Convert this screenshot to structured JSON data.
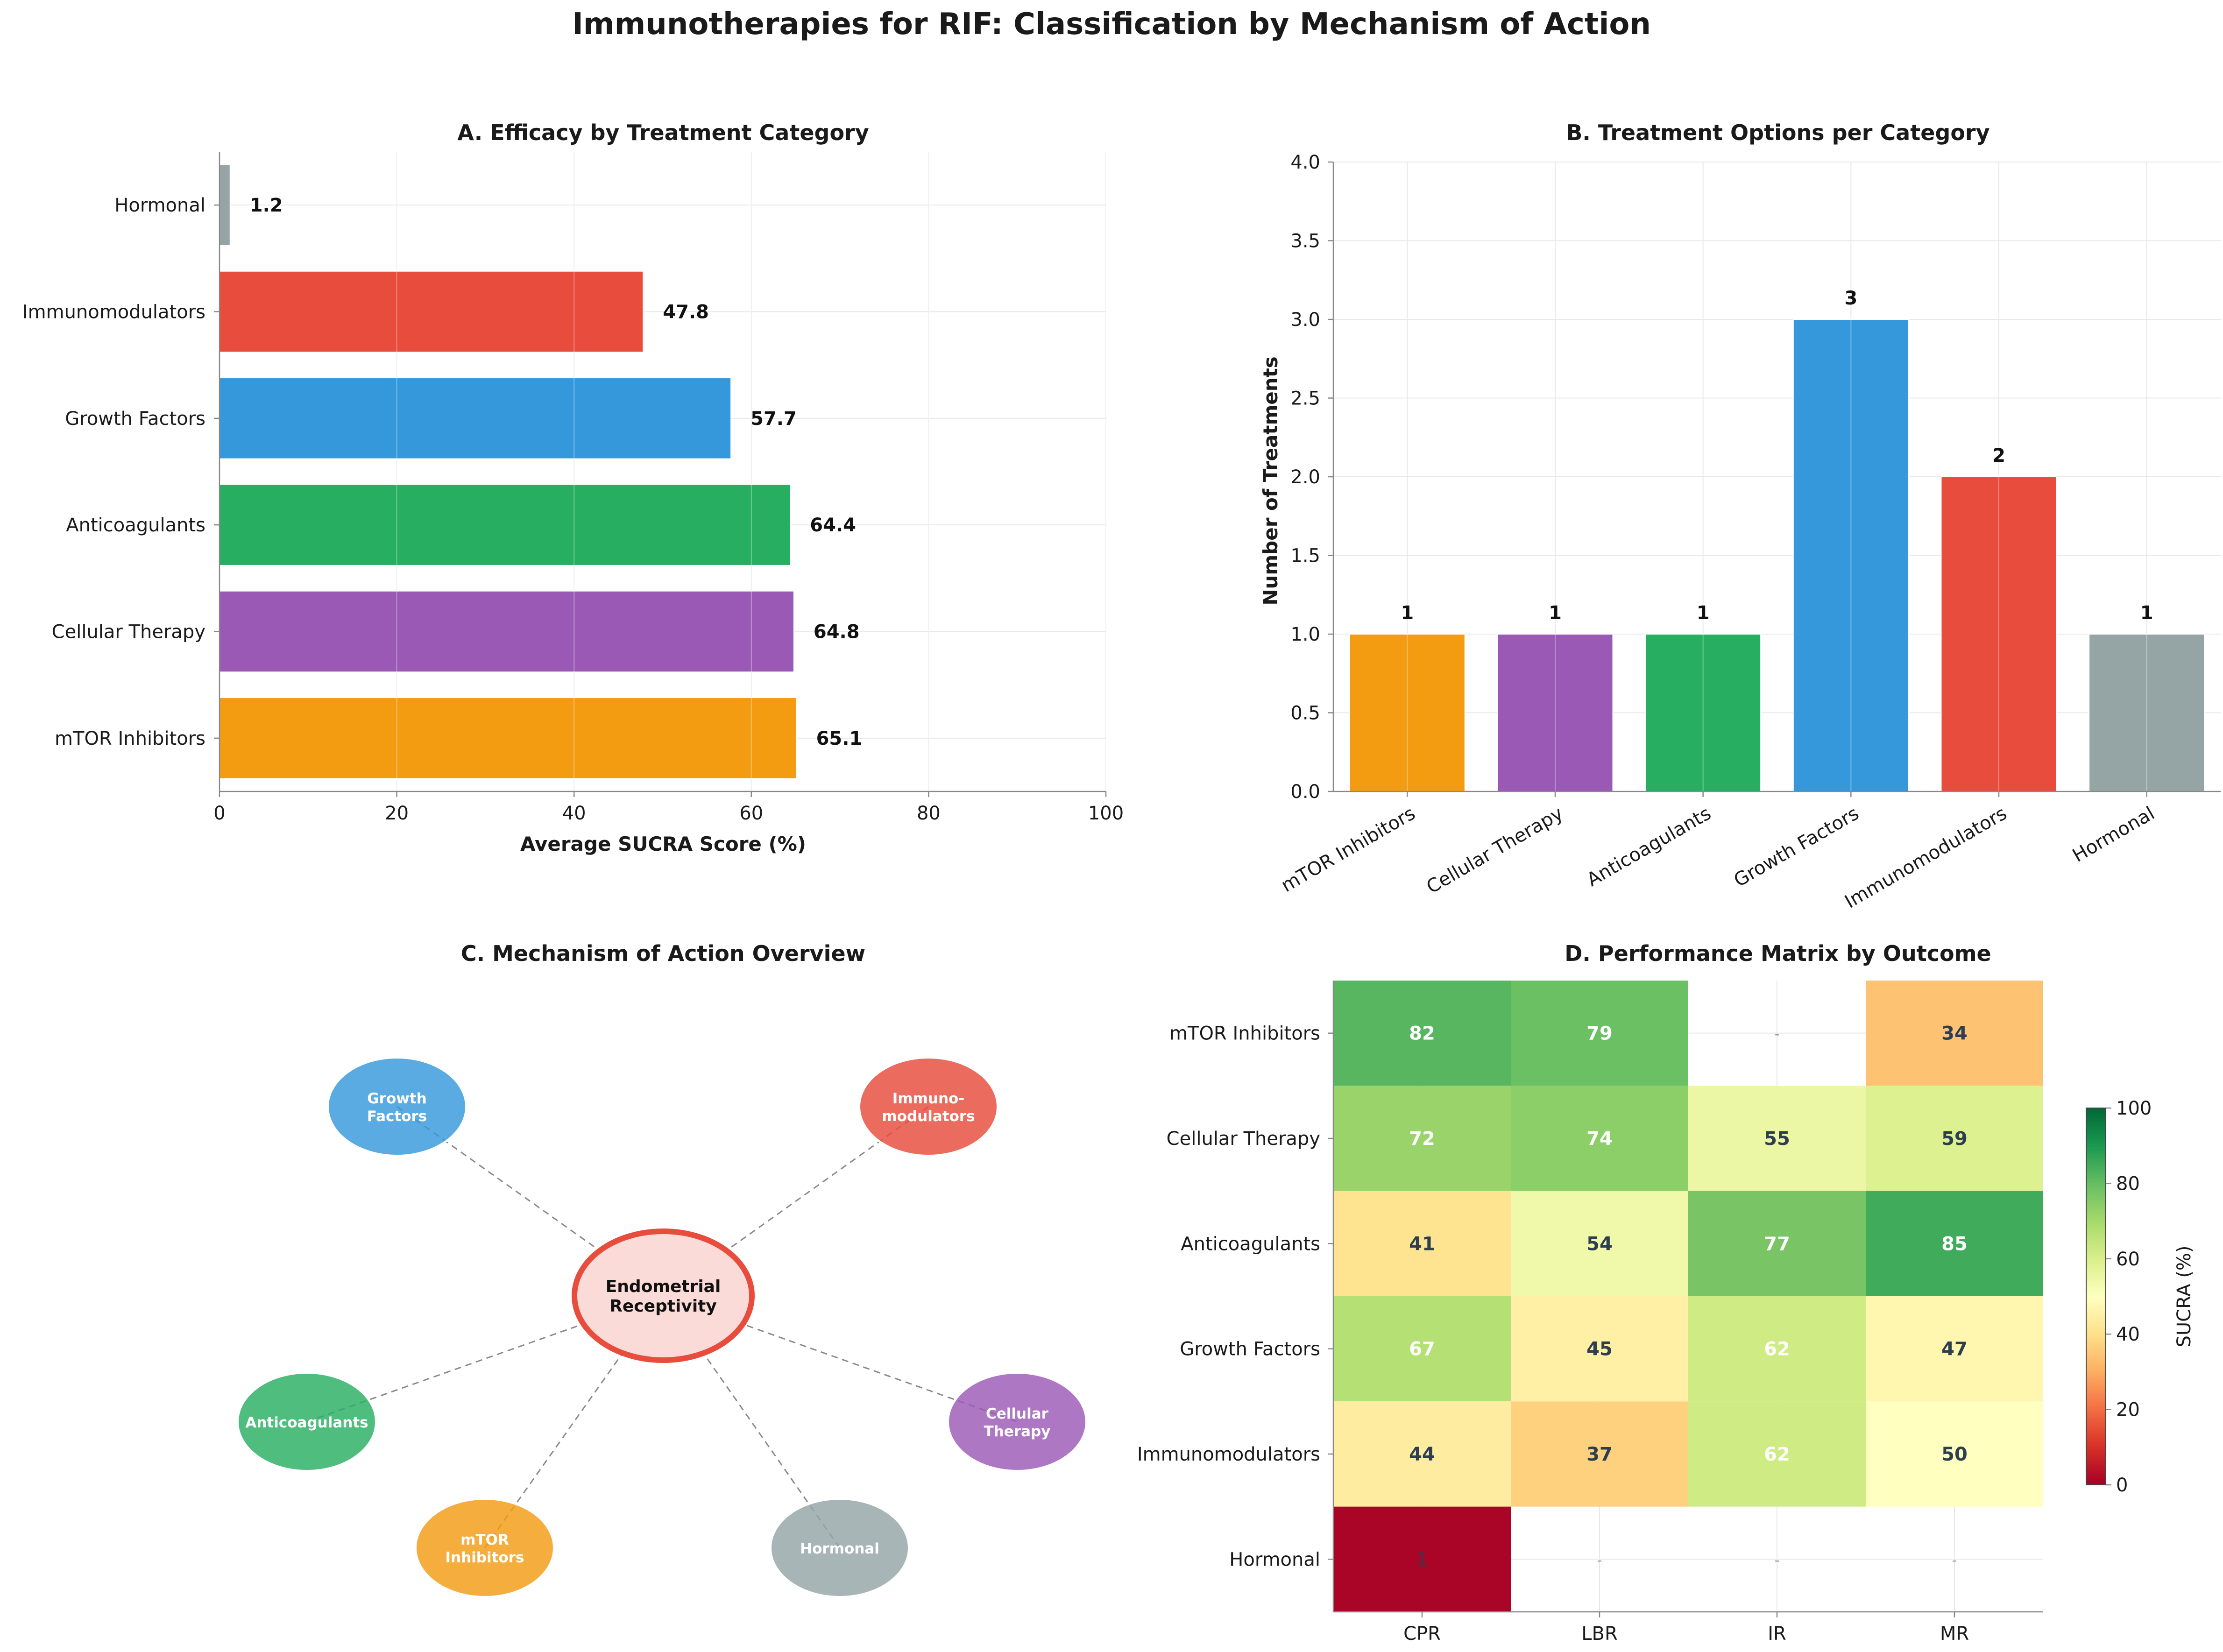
{
  "title": "Immunotherapies for RIF: Classification by Mechanism of Action",
  "categories": [
    "mTOR Inhibitors",
    "Cellular Therapy",
    "Anticoagulants",
    "Growth Factors",
    "Immunomodulators",
    "Hormonal"
  ],
  "colors": [
    "#f39c12",
    "#9b59b6",
    "#27ae60",
    "#3498db",
    "#e74c3c",
    "#95a5a6"
  ],
  "chart_data": [
    {
      "type": "bar",
      "orientation": "horizontal",
      "title": "A. Efficacy by Treatment Category",
      "xlabel": "Average SUCRA Score (%)",
      "ylabel": "",
      "categories": [
        "mTOR Inhibitors",
        "Cellular Therapy",
        "Anticoagulants",
        "Growth Factors",
        "Immunomodulators",
        "Hormonal"
      ],
      "values": [
        65.1,
        64.8,
        64.4,
        57.7,
        47.8,
        1.2
      ],
      "value_labels": [
        "65.1",
        "64.8",
        "64.4",
        "57.7",
        "47.8",
        "1.2"
      ],
      "xlim": [
        0,
        100
      ],
      "xticks": [
        "0",
        "20",
        "40",
        "60",
        "80",
        "100"
      ],
      "grid": true
    },
    {
      "type": "bar",
      "title": "B. Treatment Options per Category",
      "xlabel": "",
      "ylabel": "Number of Treatments",
      "categories": [
        "mTOR Inhibitors",
        "Cellular Therapy",
        "Anticoagulants",
        "Growth Factors",
        "Immunomodulators",
        "Hormonal"
      ],
      "values": [
        1,
        1,
        1,
        3,
        2,
        1
      ],
      "value_labels": [
        "1",
        "1",
        "1",
        "3",
        "2",
        "1"
      ],
      "ylim": [
        0,
        4
      ],
      "yticks": [
        "0.0",
        "0.5",
        "1.0",
        "1.5",
        "2.0",
        "2.5",
        "3.0",
        "3.5",
        "4.0"
      ],
      "grid": true
    },
    {
      "type": "diagram",
      "title": "C. Mechanism of Action Overview",
      "center": {
        "label": "Endometrial\nReceptivity",
        "color": "#e74c3c"
      },
      "nodes": [
        {
          "label": "Growth\nFactors",
          "color": "#3498db"
        },
        {
          "label": "Immuno-\nmodulators",
          "color": "#e74c3c"
        },
        {
          "label": "Anticoagulants",
          "color": "#27ae60"
        },
        {
          "label": "Cellular\nTherapy",
          "color": "#9b59b6"
        },
        {
          "label": "mTOR\nInhibitors",
          "color": "#f39c12"
        },
        {
          "label": "Hormonal",
          "color": "#95a5a6"
        }
      ]
    },
    {
      "type": "heatmap",
      "title": "D. Performance Matrix by Outcome",
      "rows": [
        "mTOR Inhibitors",
        "Cellular Therapy",
        "Anticoagulants",
        "Growth Factors",
        "Immunomodulators",
        "Hormonal"
      ],
      "columns": [
        "CPR",
        "LBR",
        "IR",
        "MR"
      ],
      "values": [
        [
          82,
          79,
          null,
          34
        ],
        [
          72,
          74,
          55,
          59
        ],
        [
          41,
          54,
          77,
          85
        ],
        [
          67,
          45,
          62,
          47
        ],
        [
          44,
          37,
          62,
          50
        ],
        [
          1,
          null,
          null,
          null
        ]
      ],
      "missing_label": "-",
      "colorbar": {
        "label": "SUCRA (%)",
        "min": 0,
        "max": 100,
        "ticks": [
          "0",
          "20",
          "40",
          "60",
          "80",
          "100"
        ],
        "colormap": "RdYlGn"
      }
    }
  ]
}
